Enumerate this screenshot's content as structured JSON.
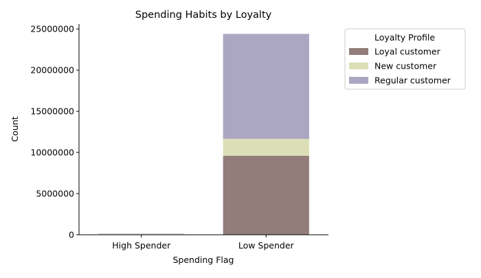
{
  "chart_data": {
    "type": "bar",
    "stacked": true,
    "title": "Spending Habits by Loyalty",
    "xlabel": "Spending Flag",
    "ylabel": "Count",
    "categories": [
      "High Spender",
      "Low Spender"
    ],
    "ylim": [
      0,
      25600000
    ],
    "yticks": [
      0,
      5000000,
      10000000,
      15000000,
      20000000,
      25000000
    ],
    "ytick_labels": [
      "0",
      "5000000",
      "10000000",
      "15000000",
      "20000000",
      "25000000"
    ],
    "grid": false,
    "legend": {
      "title": "Loyalty Profile",
      "placement": "outside-upper-right"
    },
    "series": [
      {
        "name": "Loyal customer",
        "color": "#927d7a",
        "values": [
          60000,
          9600000
        ]
      },
      {
        "name": "New customer",
        "color": "#dcdfb6",
        "values": [
          20000,
          2050000
        ]
      },
      {
        "name": "Regular customer",
        "color": "#aba6c1",
        "values": [
          40000,
          12750000
        ]
      }
    ]
  }
}
